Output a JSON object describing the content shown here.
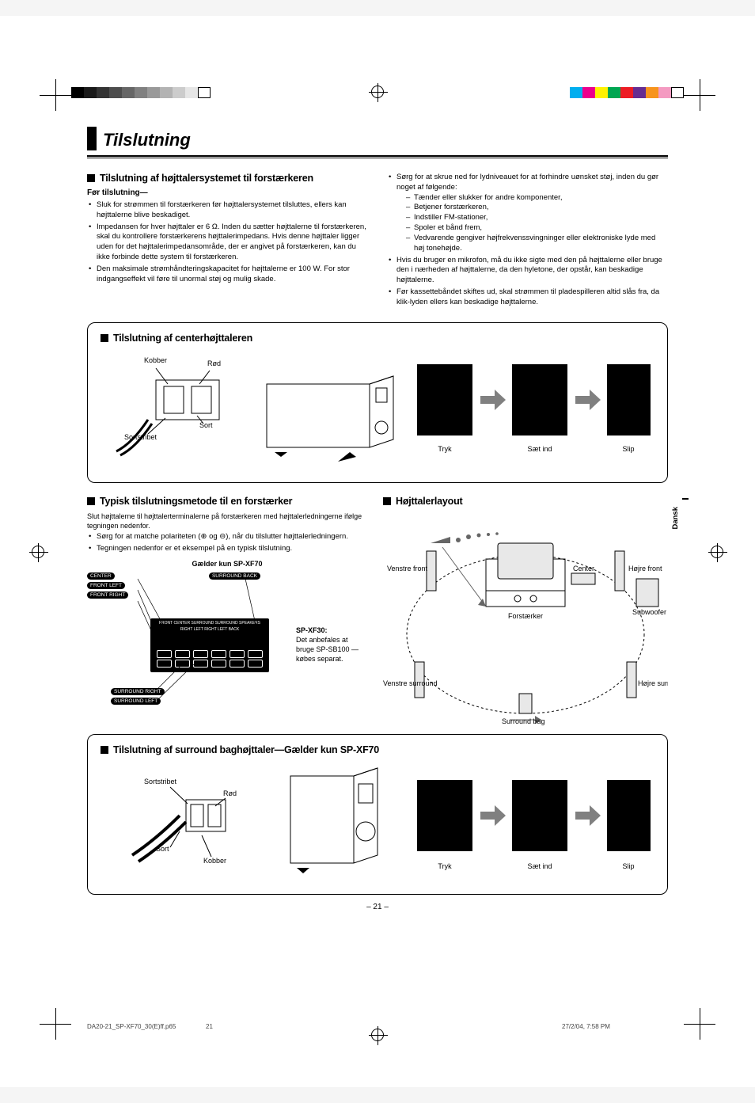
{
  "meta": {
    "language_tab": "Dansk",
    "page_number": "– 21 –",
    "footer_file": "DA20-21_SP-XF70_30(E)ff.p65",
    "footer_pagenum": "21",
    "footer_datetime": "27/2/04, 7:58 PM"
  },
  "title": "Tilslutning",
  "section_main": {
    "heading": "Tilslutning af højttalersystemet til forstærkeren",
    "sub": "Før tilslutning—",
    "left_bullets": [
      "Sluk for strømmen til forstærkeren før højttalersystemet tilsluttes, ellers kan højttalerne blive beskadiget.",
      "Impedansen for hver højttaler er 6 Ω. Inden du sætter højttalerne til forstærkeren, skal du kontrollere forstærkerens højttalerimpedans. Hvis denne højttaler ligger uden for det højttalerimpedansområde, der er angivet på forstærkeren, kan du ikke forbinde dette system til forstærkeren.",
      "Den maksimale strømhåndteringskapacitet for højttalerne er 100 W. For stor indgangseffekt vil føre til unormal støj og mulig skade."
    ],
    "right_intro": "Sørg for at skrue ned for lydniveauet for at forhindre uønsket støj, inden du gør noget af følgende:",
    "right_dashes": [
      "Tænder eller slukker for andre komponenter,",
      "Betjener forstærkeren,",
      "Indstiller FM-stationer,",
      "Spoler et bånd frem,",
      "Vedvarende gengiver højfrekvenssvingninger eller elektroniske lyde med høj tonehøjde."
    ],
    "right_bullets": [
      "Hvis du bruger en mikrofon, må du ikke sigte med den på højttalerne eller bruge den i nærheden af højttalerne, da den hyletone, der opstår, kan beskadige højttalerne.",
      "Før kassettebåndet skiftes ud, skal strømmen til pladespilleren altid slås fra, da klik-lyden ellers kan beskadige højttalerne."
    ]
  },
  "section_center": {
    "heading": "Tilslutning af centerhøjttaleren",
    "labels": {
      "kobber": "Kobber",
      "rod": "Rød",
      "sort": "Sort",
      "sortstribet": "Sortstribet"
    },
    "steps": {
      "tryk": "Tryk",
      "saet": "Sæt ind",
      "slip": "Slip"
    }
  },
  "section_method": {
    "heading": "Typisk tilslutningsmetode til en forstærker",
    "intro": "Slut højttalerne til højttalerterminalerne på forstærkeren med højttalerledningerne ifølge tegningen nedenfor.",
    "bullets": [
      "Sørg for at matche polariteten (⊕ og ⊖), når du tilslutter højttalerledningern.",
      "Tegningen nedenfor er et eksempel på en typisk tilslutning."
    ],
    "model_note": "Gælder kun SP-XF70",
    "amp_labels": [
      "CENTER",
      "FRONT LEFT",
      "FRONT RIGHT",
      "SURROUND RIGHT",
      "SURROUND LEFT",
      "SURROUND BACK"
    ],
    "terminal_row": "FRONT CENTER SURROUND SURROUND SPEAKERS",
    "terminal_sub": "RIGHT  LEFT  RIGHT  LEFT  BACK",
    "note_title": "SP-XF30:",
    "note_body": "Det anbefales at bruge SP-SB100 —købes separat."
  },
  "section_layout": {
    "heading": "Højttalerlayout",
    "labels": {
      "venstre_front": "Venstre front",
      "hojre_front": "Højre front",
      "center": "Center",
      "subwoofer": "Subwoofer",
      "forstaerker": "Forstærker",
      "venstre_surround": "Venstre surround",
      "hojre_surround": "Højre surround",
      "surround_bag": "Surround bag"
    }
  },
  "section_surround": {
    "heading": "Tilslutning af surround baghøjttaler—Gælder kun SP-XF70",
    "labels": {
      "kobber": "Kobber",
      "rod": "Rød",
      "sort": "Sort",
      "sortstribet": "Sortstribet"
    },
    "steps": {
      "tryk": "Tryk",
      "saet": "Sæt ind",
      "slip": "Slip"
    }
  },
  "colorbars": {
    "left": [
      "#000000",
      "#1a1a1a",
      "#333333",
      "#4d4d4d",
      "#666666",
      "#808080",
      "#999999",
      "#b3b3b3",
      "#cccccc",
      "#e6e6e6",
      "#ffffff"
    ],
    "right": [
      "#00aeef",
      "#ec008c",
      "#fff200",
      "#00a651",
      "#ed1c24",
      "#662d91",
      "#f7941d",
      "#f49ac1",
      "#ffffff"
    ]
  }
}
